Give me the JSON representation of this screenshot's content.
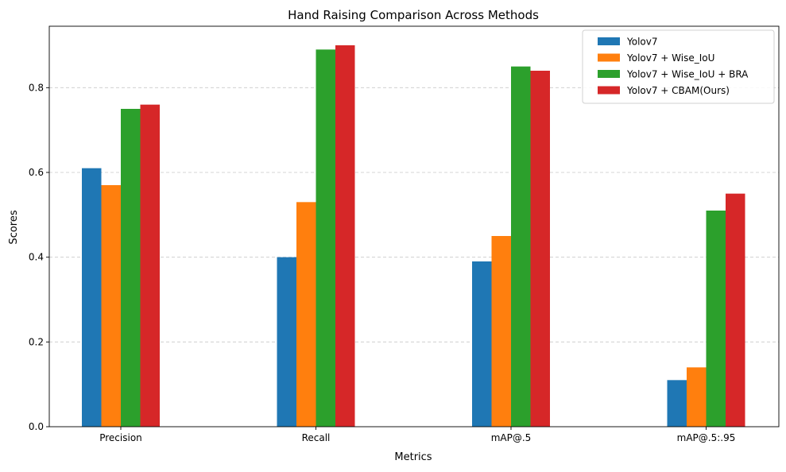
{
  "chart_data": {
    "type": "bar",
    "title": "Hand Raising Comparison Across Methods",
    "xlabel": "Metrics",
    "ylabel": "Scores",
    "categories": [
      "Precision",
      "Recall",
      "mAP@.5",
      "mAP@.5:.95"
    ],
    "ylim": [
      0,
      0.945
    ],
    "yticks": [
      "0.0",
      "0.2",
      "0.4",
      "0.6",
      "0.8"
    ],
    "ytick_values": [
      0,
      0.2,
      0.4,
      0.6,
      0.8
    ],
    "grid": "y-dashed",
    "legend_position": "top-right",
    "series": [
      {
        "name": "Yolov7",
        "color": "#1f77b4",
        "values": [
          0.61,
          0.4,
          0.39,
          0.11
        ]
      },
      {
        "name": "Yolov7 + Wise_IoU",
        "color": "#ff7f0e",
        "values": [
          0.57,
          0.53,
          0.45,
          0.14
        ]
      },
      {
        "name": "Yolov7 + Wise_IoU + BRA",
        "color": "#2ca02c",
        "values": [
          0.75,
          0.89,
          0.85,
          0.51
        ]
      },
      {
        "name": "Yolov7 + CBAM(Ours)",
        "color": "#d62728",
        "values": [
          0.76,
          0.9,
          0.84,
          0.55
        ]
      }
    ]
  }
}
